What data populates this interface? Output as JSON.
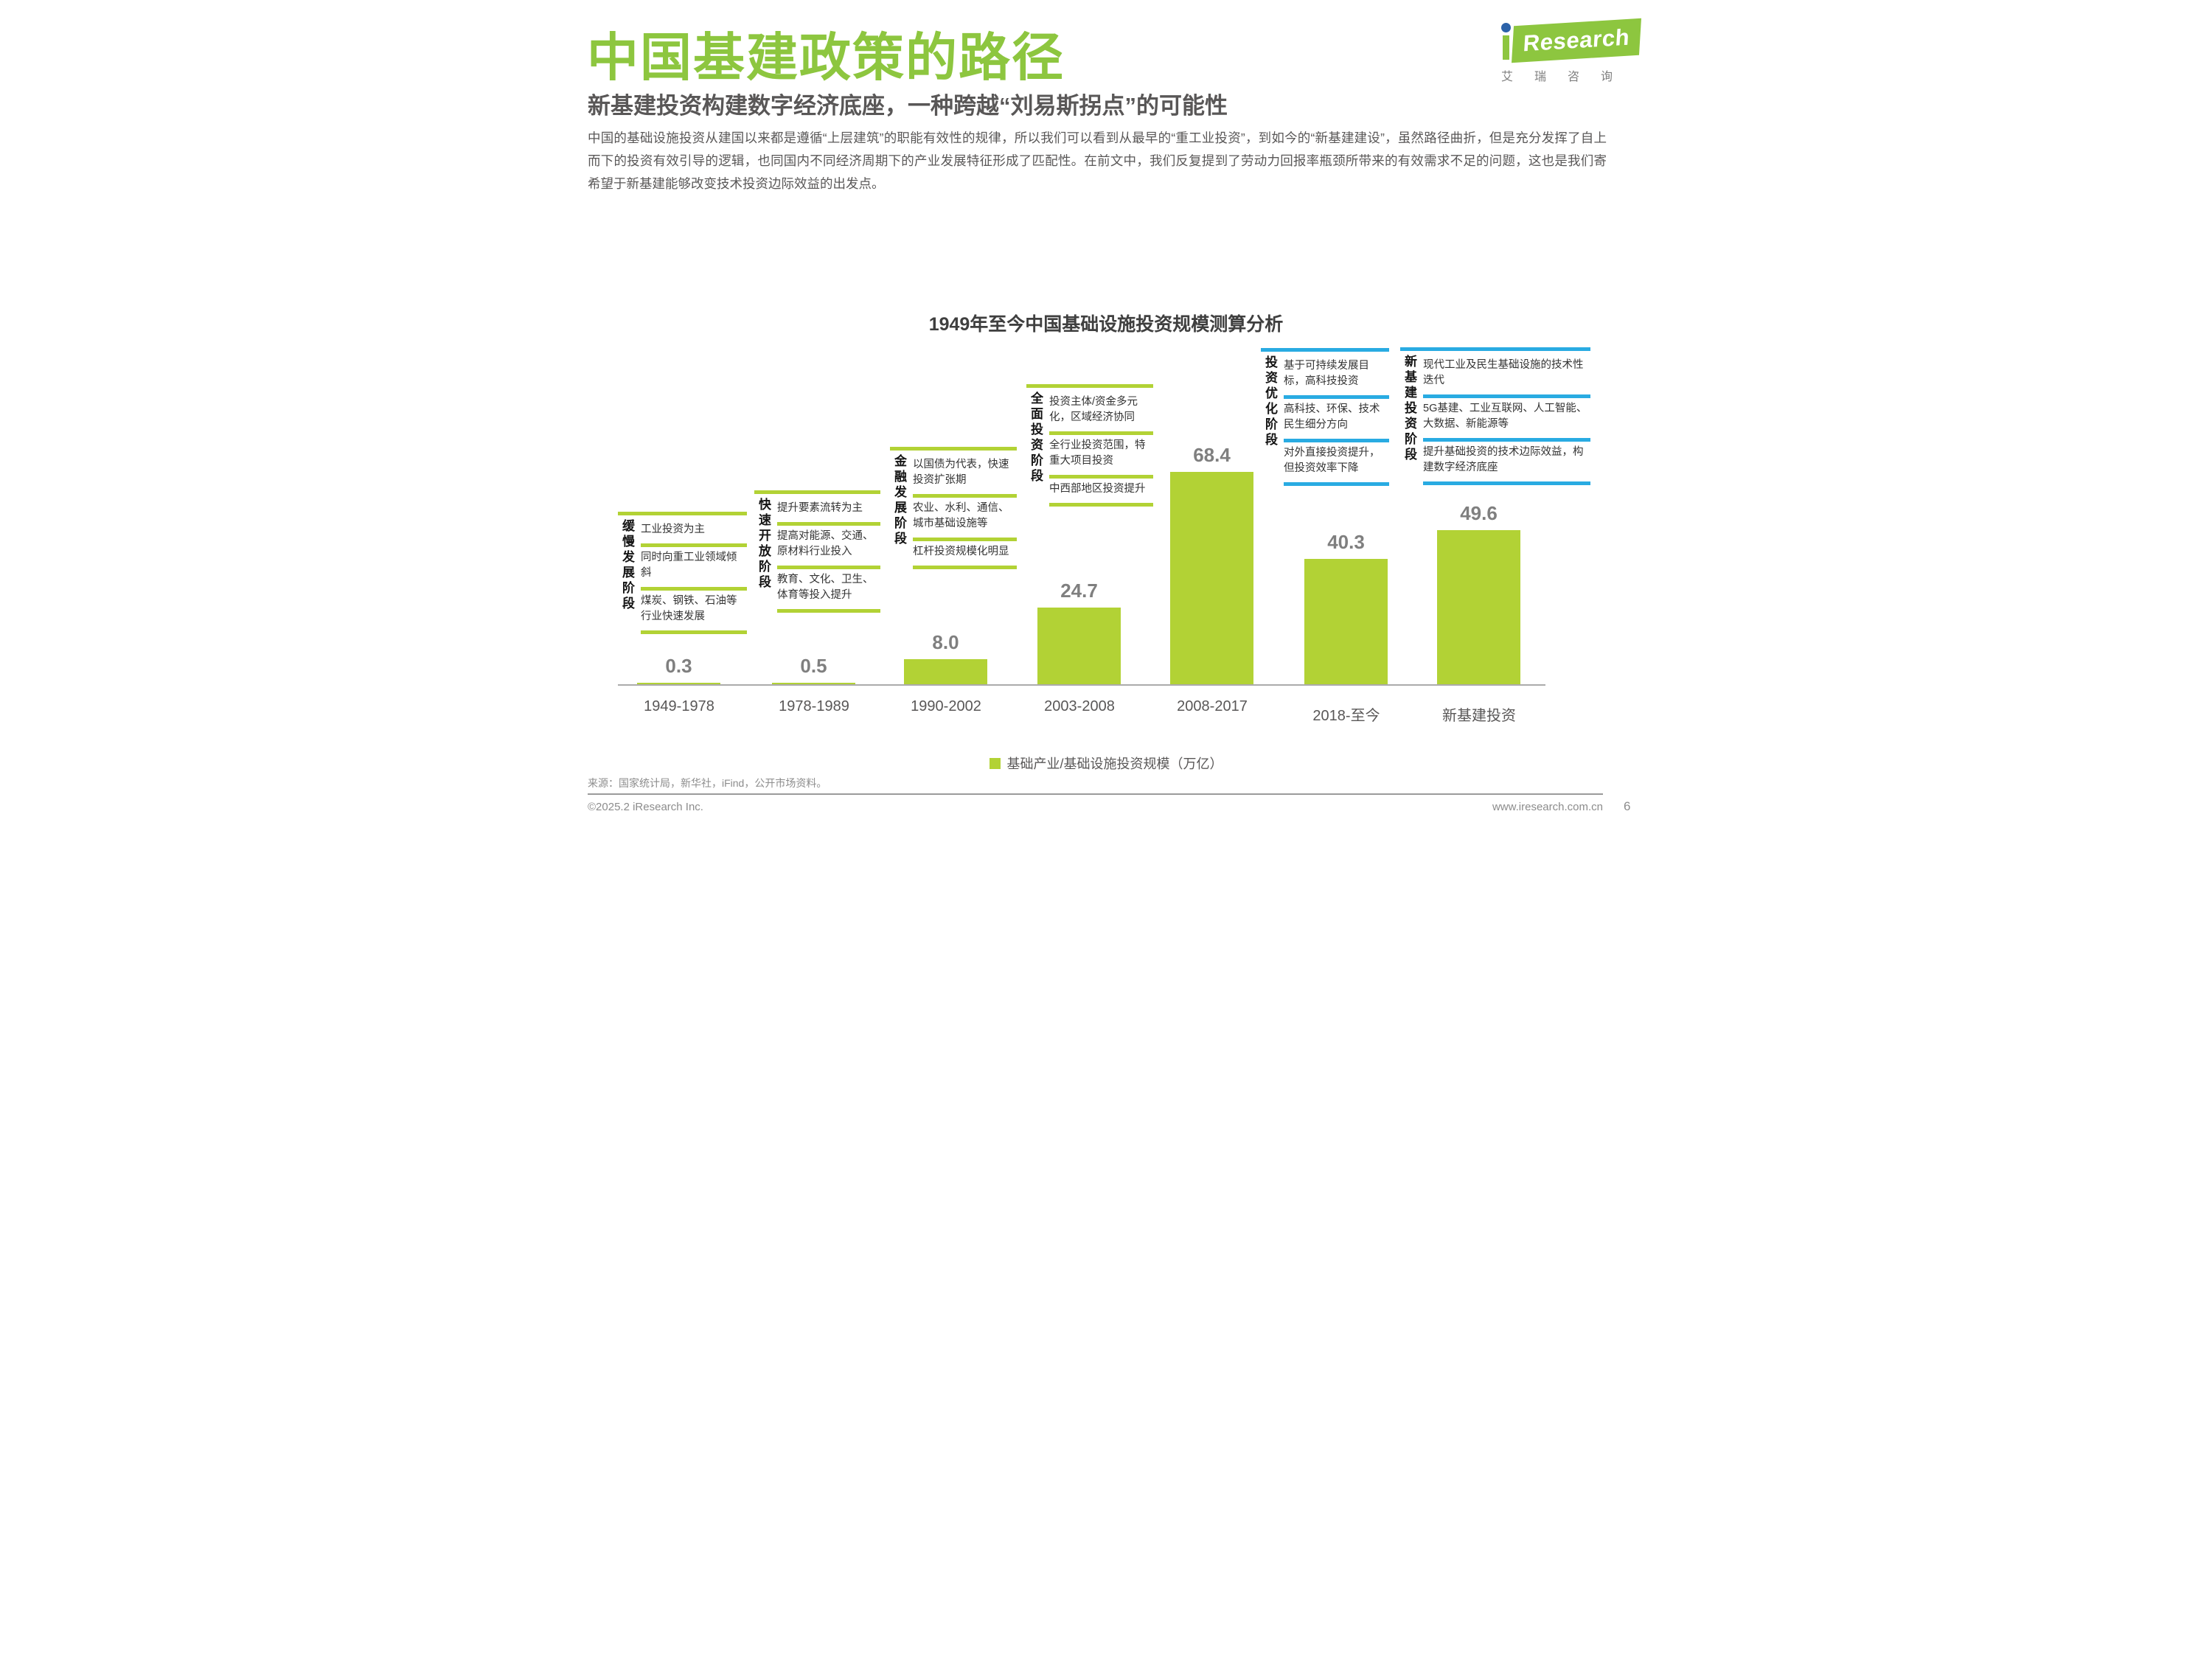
{
  "page": {
    "title": "中国基建政策的路径",
    "subtitle": "新基建投资构建数字经济底座，一种跨越“刘易斯拐点”的可能性",
    "body": "中国的基础设施投资从建国以来都是遵循“上层建筑”的职能有效性的规律，所以我们可以看到从最早的“重工业投资”，到如今的“新基建建设”，虽然路径曲折，但是充分发挥了自上而下的投资有效引导的逻辑，也同国内不同经济周期下的产业发展特征形成了匹配性。在前文中，我们反复提到了劳动力回报率瓶颈所带来的有效需求不足的问题，这也是我们寄希望于新基建能够改变技术投资边际效益的出发点。",
    "page_number": "6"
  },
  "logo": {
    "brand": "Research",
    "cn": "艾瑞咨询"
  },
  "footer": {
    "source": "来源：国家统计局，新华社，iFind，公开市场资料。",
    "copyright": "©2025.2 iResearch Inc.",
    "website": "www.iresearch.com.cn"
  },
  "colors": {
    "title_green": "#8DC63F",
    "bar_green": "#B2D235",
    "accent_cyan": "#29ABE2",
    "text_gray": "#595757"
  },
  "chart_data": {
    "type": "bar",
    "title": "1949年至今中国基础设施投资规模测算分析",
    "categories": [
      "1949-1978",
      "1978-1989",
      "1990-2002",
      "2003-2008",
      "2008-2017",
      "2018-至今",
      "新基建投资"
    ],
    "values": [
      0.3,
      0.5,
      8.0,
      24.7,
      68.4,
      40.3,
      49.6
    ],
    "value_labels": [
      "0.3",
      "0.5",
      "8.0",
      "24.7",
      "68.4",
      "40.3",
      "49.6"
    ],
    "unit": "万亿",
    "legend": "基础产业/基础设施投资规模（万亿）",
    "legend_position": "bottom",
    "grid": false,
    "ylim": [
      0,
      70
    ],
    "bar_color": "#B2D235",
    "stages": [
      {
        "bar_index": 0,
        "accent": "#B2D235",
        "label": "缓慢发展阶段",
        "items": [
          "工业投资为主",
          "同时向重工业领域倾斜",
          "煤炭、钢铁、石油等行业快速发展"
        ]
      },
      {
        "bar_index": 1,
        "accent": "#B2D235",
        "label": "快速开放阶段",
        "items": [
          "提升要素流转为主",
          "提高对能源、交通、原材料行业投入",
          "教育、文化、卫生、体育等投入提升"
        ]
      },
      {
        "bar_index": 2,
        "accent": "#B2D235",
        "label": "金融发展阶段",
        "items": [
          "以国债为代表，快速投资扩张期",
          "农业、水利、通信、城市基础设施等",
          "杠杆投资规模化明显"
        ]
      },
      {
        "bar_index": 3,
        "accent": "#B2D235",
        "label": "全面投资阶段",
        "items": [
          "投资主体/资金多元化，区域经济协同",
          "全行业投资范围，特重大项目投资",
          "中西部地区投资提升"
        ]
      },
      {
        "bar_index": 5,
        "accent": "#29ABE2",
        "label": "投资优化阶段",
        "items": [
          "基于可持续发展目标，高科技投资",
          "高科技、环保、技术民生细分方向",
          "对外直接投资提升，但投资效率下降"
        ]
      },
      {
        "bar_index": 6,
        "accent": "#29ABE2",
        "label": "新基建投资阶段",
        "items": [
          "现代工业及民生基础设施的技术性迭代",
          "5G基建、工业互联网、人工智能、大数据、新能源等",
          "提升基础投资的技术边际效益，构建数字经济底座"
        ]
      }
    ]
  }
}
